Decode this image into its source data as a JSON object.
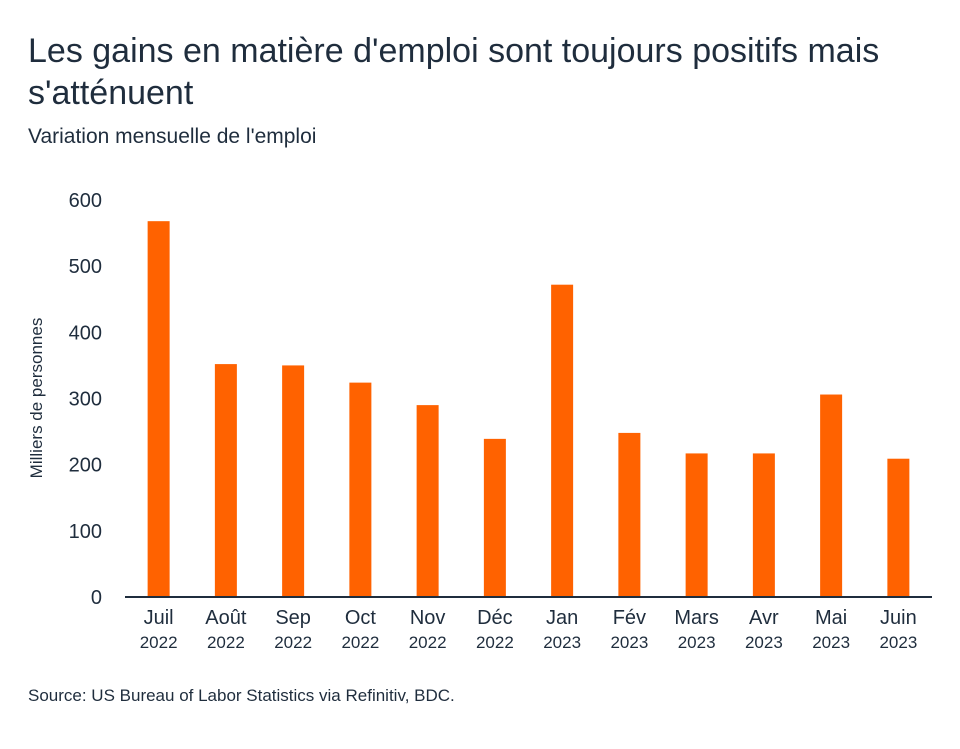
{
  "title": "Les gains en matière d'emploi sont toujours positifs mais s'atténuent",
  "subtitle": "Variation mensuelle de l'emploi",
  "source": "Source: US Bureau of Labor Statistics via Refinitiv, BDC.",
  "colors": {
    "bar": "#ff6200",
    "axis": "#1f2d3d",
    "text": "#1f2d3d"
  },
  "chart_data": {
    "type": "bar",
    "title": "Les gains en matière d'emploi sont toujours positifs mais s'atténuent",
    "subtitle": "Variation mensuelle de l'emploi",
    "xlabel": "",
    "ylabel": "Milliers de personnes",
    "ylim": [
      0,
      600
    ],
    "yticks": [
      0,
      100,
      200,
      300,
      400,
      500,
      600
    ],
    "grid": false,
    "categories": [
      {
        "month": "Juil",
        "year": "2022"
      },
      {
        "month": "Août",
        "year": "2022"
      },
      {
        "month": "Sep",
        "year": "2022"
      },
      {
        "month": "Oct",
        "year": "2022"
      },
      {
        "month": "Nov",
        "year": "2022"
      },
      {
        "month": "Déc",
        "year": "2022"
      },
      {
        "month": "Jan",
        "year": "2023"
      },
      {
        "month": "Fév",
        "year": "2023"
      },
      {
        "month": "Mars",
        "year": "2023"
      },
      {
        "month": "Avr",
        "year": "2023"
      },
      {
        "month": "Mai",
        "year": "2023"
      },
      {
        "month": "Juin",
        "year": "2023"
      }
    ],
    "values": [
      568,
      352,
      350,
      324,
      290,
      239,
      472,
      248,
      217,
      217,
      306,
      209
    ]
  }
}
